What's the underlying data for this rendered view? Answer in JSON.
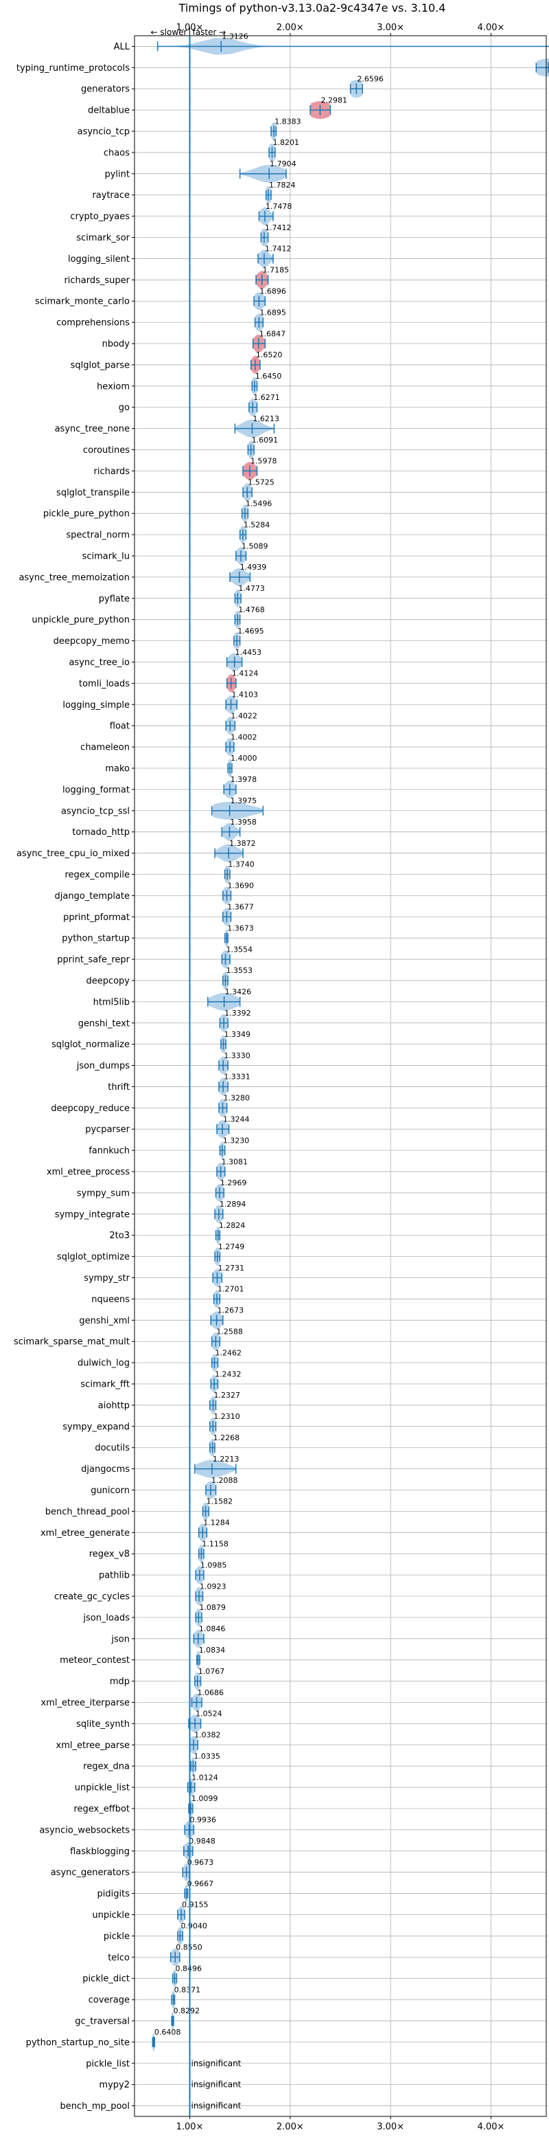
{
  "chart_data": {
    "type": "violin",
    "title": "Timings of python-v3.13.0a2-9c4347e vs. 3.10.4",
    "xlim": [
      0.45,
      4.55
    ],
    "x_ticks": [
      {
        "value": 1.0,
        "label": "1.00×"
      },
      {
        "value": 2.0,
        "label": "2.00×"
      },
      {
        "value": 3.0,
        "label": "3.00×"
      },
      {
        "value": 4.0,
        "label": "4.00×"
      }
    ],
    "reference_line": 1.0,
    "top_annotation": {
      "slower": "← slower",
      "faster": "faster →"
    },
    "grid": true,
    "colors": {
      "normal": "#1f77b4",
      "fill": "#a8cbe8",
      "highlight": "#e58591",
      "grid": "#b0b0b0"
    },
    "insignificant_label": "insignificant",
    "benchmarks": [
      {
        "name": "ALL",
        "median": 1.3126,
        "min": 0.68,
        "max": 4.72,
        "spread": 0.18,
        "highlight": false
      },
      {
        "name": "typing_runtime_protocols",
        "median": 4.5705,
        "min": 4.45,
        "max": 4.75,
        "spread": 0.15,
        "highlight": false
      },
      {
        "name": "generators",
        "median": 2.6596,
        "min": 2.6,
        "max": 2.72,
        "spread": 0.08,
        "highlight": false
      },
      {
        "name": "deltablue",
        "median": 2.2981,
        "min": 2.2,
        "max": 2.4,
        "spread": 0.12,
        "highlight": true
      },
      {
        "name": "asyncio_tcp",
        "median": 1.8383,
        "min": 1.81,
        "max": 1.86,
        "spread": 0.03,
        "highlight": false
      },
      {
        "name": "chaos",
        "median": 1.8201,
        "min": 1.79,
        "max": 1.85,
        "spread": 0.04,
        "highlight": false
      },
      {
        "name": "pylint",
        "median": 1.7904,
        "min": 1.5,
        "max": 1.96,
        "spread": 0.14,
        "highlight": false
      },
      {
        "name": "raytrace",
        "median": 1.7824,
        "min": 1.76,
        "max": 1.81,
        "spread": 0.03,
        "highlight": false
      },
      {
        "name": "crypto_pyaes",
        "median": 1.7478,
        "min": 1.69,
        "max": 1.83,
        "spread": 0.05,
        "highlight": false
      },
      {
        "name": "scimark_sor",
        "median": 1.7412,
        "min": 1.71,
        "max": 1.78,
        "spread": 0.04,
        "highlight": false
      },
      {
        "name": "logging_silent",
        "median": 1.7412,
        "min": 1.68,
        "max": 1.83,
        "spread": 0.05,
        "highlight": false
      },
      {
        "name": "richards_super",
        "median": 1.7185,
        "min": 1.66,
        "max": 1.78,
        "spread": 0.05,
        "highlight": true
      },
      {
        "name": "scimark_monte_carlo",
        "median": 1.6896,
        "min": 1.64,
        "max": 1.75,
        "spread": 0.05,
        "highlight": false
      },
      {
        "name": "comprehensions",
        "median": 1.6895,
        "min": 1.65,
        "max": 1.73,
        "spread": 0.04,
        "highlight": false
      },
      {
        "name": "nbody",
        "median": 1.6847,
        "min": 1.63,
        "max": 1.75,
        "spread": 0.05,
        "highlight": true
      },
      {
        "name": "sqlglot_parse",
        "median": 1.652,
        "min": 1.61,
        "max": 1.7,
        "spread": 0.04,
        "highlight": true
      },
      {
        "name": "hexiom",
        "median": 1.645,
        "min": 1.62,
        "max": 1.67,
        "spread": 0.03,
        "highlight": false
      },
      {
        "name": "go",
        "median": 1.6271,
        "min": 1.59,
        "max": 1.67,
        "spread": 0.04,
        "highlight": false
      },
      {
        "name": "async_tree_none",
        "median": 1.6213,
        "min": 1.45,
        "max": 1.84,
        "spread": 0.1,
        "highlight": false
      },
      {
        "name": "coroutines",
        "median": 1.6091,
        "min": 1.58,
        "max": 1.64,
        "spread": 0.03,
        "highlight": false
      },
      {
        "name": "richards",
        "median": 1.5978,
        "min": 1.53,
        "max": 1.67,
        "spread": 0.06,
        "highlight": true
      },
      {
        "name": "sqlglot_transpile",
        "median": 1.5725,
        "min": 1.53,
        "max": 1.62,
        "spread": 0.04,
        "highlight": false
      },
      {
        "name": "pickle_pure_python",
        "median": 1.5496,
        "min": 1.52,
        "max": 1.58,
        "spread": 0.03,
        "highlight": false
      },
      {
        "name": "spectral_norm",
        "median": 1.5284,
        "min": 1.5,
        "max": 1.56,
        "spread": 0.03,
        "highlight": false
      },
      {
        "name": "scimark_lu",
        "median": 1.5089,
        "min": 1.46,
        "max": 1.56,
        "spread": 0.04,
        "highlight": false
      },
      {
        "name": "async_tree_memoization",
        "median": 1.4939,
        "min": 1.4,
        "max": 1.6,
        "spread": 0.07,
        "highlight": false
      },
      {
        "name": "pyflate",
        "median": 1.4773,
        "min": 1.45,
        "max": 1.51,
        "spread": 0.03,
        "highlight": false
      },
      {
        "name": "unpickle_pure_python",
        "median": 1.4768,
        "min": 1.45,
        "max": 1.5,
        "spread": 0.03,
        "highlight": false
      },
      {
        "name": "deepcopy_memo",
        "median": 1.4695,
        "min": 1.44,
        "max": 1.5,
        "spread": 0.03,
        "highlight": false
      },
      {
        "name": "async_tree_io",
        "median": 1.4453,
        "min": 1.37,
        "max": 1.52,
        "spread": 0.06,
        "highlight": false
      },
      {
        "name": "tomli_loads",
        "median": 1.4124,
        "min": 1.37,
        "max": 1.46,
        "spread": 0.04,
        "highlight": true
      },
      {
        "name": "logging_simple",
        "median": 1.4103,
        "min": 1.36,
        "max": 1.47,
        "spread": 0.05,
        "highlight": false
      },
      {
        "name": "float",
        "median": 1.4022,
        "min": 1.36,
        "max": 1.45,
        "spread": 0.04,
        "highlight": false
      },
      {
        "name": "chameleon",
        "median": 1.4002,
        "min": 1.36,
        "max": 1.44,
        "spread": 0.04,
        "highlight": false
      },
      {
        "name": "mako",
        "median": 1.4,
        "min": 1.38,
        "max": 1.42,
        "spread": 0.03,
        "highlight": false
      },
      {
        "name": "logging_format",
        "median": 1.3978,
        "min": 1.34,
        "max": 1.46,
        "spread": 0.05,
        "highlight": false
      },
      {
        "name": "asyncio_tcp_ssl",
        "median": 1.3975,
        "min": 1.22,
        "max": 1.73,
        "spread": 0.2,
        "highlight": false
      },
      {
        "name": "tornado_http",
        "median": 1.3958,
        "min": 1.32,
        "max": 1.5,
        "spread": 0.06,
        "highlight": false
      },
      {
        "name": "async_tree_cpu_io_mixed",
        "median": 1.3872,
        "min": 1.25,
        "max": 1.53,
        "spread": 0.09,
        "highlight": false
      },
      {
        "name": "regex_compile",
        "median": 1.374,
        "min": 1.35,
        "max": 1.4,
        "spread": 0.03,
        "highlight": false
      },
      {
        "name": "django_template",
        "median": 1.369,
        "min": 1.33,
        "max": 1.41,
        "spread": 0.04,
        "highlight": false
      },
      {
        "name": "pprint_pformat",
        "median": 1.3677,
        "min": 1.33,
        "max": 1.41,
        "spread": 0.04,
        "highlight": false
      },
      {
        "name": "python_startup",
        "median": 1.3673,
        "min": 1.35,
        "max": 1.38,
        "spread": 0.02,
        "highlight": false
      },
      {
        "name": "pprint_safe_repr",
        "median": 1.3554,
        "min": 1.32,
        "max": 1.4,
        "spread": 0.04,
        "highlight": false
      },
      {
        "name": "deepcopy",
        "median": 1.3553,
        "min": 1.33,
        "max": 1.38,
        "spread": 0.03,
        "highlight": false
      },
      {
        "name": "html5lib",
        "median": 1.3426,
        "min": 1.18,
        "max": 1.5,
        "spread": 0.12,
        "highlight": false
      },
      {
        "name": "genshi_text",
        "median": 1.3392,
        "min": 1.3,
        "max": 1.38,
        "spread": 0.04,
        "highlight": false
      },
      {
        "name": "sqlglot_normalize",
        "median": 1.3349,
        "min": 1.31,
        "max": 1.36,
        "spread": 0.03,
        "highlight": false
      },
      {
        "name": "json_dumps",
        "median": 1.333,
        "min": 1.29,
        "max": 1.38,
        "spread": 0.04,
        "highlight": false
      },
      {
        "name": "thrift",
        "median": 1.3331,
        "min": 1.29,
        "max": 1.38,
        "spread": 0.04,
        "highlight": false
      },
      {
        "name": "deepcopy_reduce",
        "median": 1.328,
        "min": 1.29,
        "max": 1.37,
        "spread": 0.04,
        "highlight": false
      },
      {
        "name": "pycparser",
        "median": 1.3244,
        "min": 1.27,
        "max": 1.39,
        "spread": 0.05,
        "highlight": false
      },
      {
        "name": "fannkuch",
        "median": 1.323,
        "min": 1.3,
        "max": 1.35,
        "spread": 0.02,
        "highlight": false
      },
      {
        "name": "xml_etree_process",
        "median": 1.3081,
        "min": 1.27,
        "max": 1.35,
        "spread": 0.04,
        "highlight": false
      },
      {
        "name": "sympy_sum",
        "median": 1.2969,
        "min": 1.26,
        "max": 1.34,
        "spread": 0.04,
        "highlight": false
      },
      {
        "name": "sympy_integrate",
        "median": 1.2894,
        "min": 1.25,
        "max": 1.33,
        "spread": 0.04,
        "highlight": false
      },
      {
        "name": "2to3",
        "median": 1.2824,
        "min": 1.26,
        "max": 1.3,
        "spread": 0.02,
        "highlight": false
      },
      {
        "name": "sqlglot_optimize",
        "median": 1.2749,
        "min": 1.25,
        "max": 1.3,
        "spread": 0.03,
        "highlight": false
      },
      {
        "name": "sympy_str",
        "median": 1.2731,
        "min": 1.23,
        "max": 1.32,
        "spread": 0.04,
        "highlight": false
      },
      {
        "name": "nqueens",
        "median": 1.2701,
        "min": 1.24,
        "max": 1.3,
        "spread": 0.03,
        "highlight": false
      },
      {
        "name": "genshi_xml",
        "median": 1.2673,
        "min": 1.21,
        "max": 1.33,
        "spread": 0.05,
        "highlight": false
      },
      {
        "name": "scimark_sparse_mat_mult",
        "median": 1.2588,
        "min": 1.22,
        "max": 1.3,
        "spread": 0.04,
        "highlight": false
      },
      {
        "name": "dulwich_log",
        "median": 1.2462,
        "min": 1.22,
        "max": 1.28,
        "spread": 0.03,
        "highlight": false
      },
      {
        "name": "scimark_fft",
        "median": 1.2432,
        "min": 1.21,
        "max": 1.28,
        "spread": 0.03,
        "highlight": false
      },
      {
        "name": "aiohttp",
        "median": 1.2327,
        "min": 1.2,
        "max": 1.26,
        "spread": 0.03,
        "highlight": false
      },
      {
        "name": "sympy_expand",
        "median": 1.231,
        "min": 1.2,
        "max": 1.26,
        "spread": 0.03,
        "highlight": false
      },
      {
        "name": "docutils",
        "median": 1.2268,
        "min": 1.2,
        "max": 1.25,
        "spread": 0.03,
        "highlight": false
      },
      {
        "name": "djangocms",
        "median": 1.2213,
        "min": 1.05,
        "max": 1.46,
        "spread": 0.14,
        "highlight": false
      },
      {
        "name": "gunicorn",
        "median": 1.2088,
        "min": 1.16,
        "max": 1.26,
        "spread": 0.05,
        "highlight": false
      },
      {
        "name": "bench_thread_pool",
        "median": 1.1582,
        "min": 1.13,
        "max": 1.19,
        "spread": 0.03,
        "highlight": false
      },
      {
        "name": "xml_etree_generate",
        "median": 1.1284,
        "min": 1.09,
        "max": 1.17,
        "spread": 0.04,
        "highlight": false
      },
      {
        "name": "regex_v8",
        "median": 1.1158,
        "min": 1.09,
        "max": 1.14,
        "spread": 0.03,
        "highlight": false
      },
      {
        "name": "pathlib",
        "median": 1.0985,
        "min": 1.06,
        "max": 1.14,
        "spread": 0.04,
        "highlight": false
      },
      {
        "name": "create_gc_cycles",
        "median": 1.0923,
        "min": 1.06,
        "max": 1.13,
        "spread": 0.04,
        "highlight": false
      },
      {
        "name": "json_loads",
        "median": 1.0879,
        "min": 1.06,
        "max": 1.12,
        "spread": 0.03,
        "highlight": false
      },
      {
        "name": "json",
        "median": 1.0846,
        "min": 1.04,
        "max": 1.14,
        "spread": 0.04,
        "highlight": false
      },
      {
        "name": "meteor_contest",
        "median": 1.0834,
        "min": 1.07,
        "max": 1.1,
        "spread": 0.02,
        "highlight": false
      },
      {
        "name": "mdp",
        "median": 1.0767,
        "min": 1.05,
        "max": 1.11,
        "spread": 0.03,
        "highlight": false
      },
      {
        "name": "xml_etree_iterparse",
        "median": 1.0686,
        "min": 1.02,
        "max": 1.12,
        "spread": 0.04,
        "highlight": false
      },
      {
        "name": "sqlite_synth",
        "median": 1.0524,
        "min": 0.99,
        "max": 1.11,
        "spread": 0.05,
        "highlight": false
      },
      {
        "name": "xml_etree_parse",
        "median": 1.0382,
        "min": 1.0,
        "max": 1.08,
        "spread": 0.04,
        "highlight": false
      },
      {
        "name": "regex_dna",
        "median": 1.0335,
        "min": 1.01,
        "max": 1.06,
        "spread": 0.02,
        "highlight": false
      },
      {
        "name": "unpickle_list",
        "median": 1.0124,
        "min": 0.98,
        "max": 1.05,
        "spread": 0.03,
        "highlight": false
      },
      {
        "name": "regex_effbot",
        "median": 1.0099,
        "min": 0.99,
        "max": 1.03,
        "spread": 0.02,
        "highlight": false
      },
      {
        "name": "asyncio_websockets",
        "median": 0.9936,
        "min": 0.95,
        "max": 1.04,
        "spread": 0.04,
        "highlight": false
      },
      {
        "name": "flaskblogging",
        "median": 0.9848,
        "min": 0.94,
        "max": 1.03,
        "spread": 0.04,
        "highlight": false
      },
      {
        "name": "async_generators",
        "median": 0.9673,
        "min": 0.93,
        "max": 1.0,
        "spread": 0.03,
        "highlight": false
      },
      {
        "name": "pidigits",
        "median": 0.9667,
        "min": 0.95,
        "max": 0.98,
        "spread": 0.02,
        "highlight": false
      },
      {
        "name": "unpickle",
        "median": 0.9155,
        "min": 0.88,
        "max": 0.95,
        "spread": 0.03,
        "highlight": false
      },
      {
        "name": "pickle",
        "median": 0.904,
        "min": 0.88,
        "max": 0.93,
        "spread": 0.03,
        "highlight": false
      },
      {
        "name": "telco",
        "median": 0.855,
        "min": 0.81,
        "max": 0.9,
        "spread": 0.04,
        "highlight": false
      },
      {
        "name": "pickle_dict",
        "median": 0.8496,
        "min": 0.83,
        "max": 0.87,
        "spread": 0.02,
        "highlight": false
      },
      {
        "name": "coverage",
        "median": 0.8371,
        "min": 0.82,
        "max": 0.85,
        "spread": 0.02,
        "highlight": false
      },
      {
        "name": "gc_traversal",
        "median": 0.8292,
        "min": 0.82,
        "max": 0.84,
        "spread": 0.015,
        "highlight": false
      },
      {
        "name": "python_startup_no_site",
        "median": 0.6408,
        "min": 0.63,
        "max": 0.65,
        "spread": 0.015,
        "highlight": false
      },
      {
        "name": "pickle_list",
        "median": null,
        "insignificant": true
      },
      {
        "name": "mypy2",
        "median": null,
        "insignificant": true
      },
      {
        "name": "bench_mp_pool",
        "median": null,
        "insignificant": true
      }
    ]
  }
}
